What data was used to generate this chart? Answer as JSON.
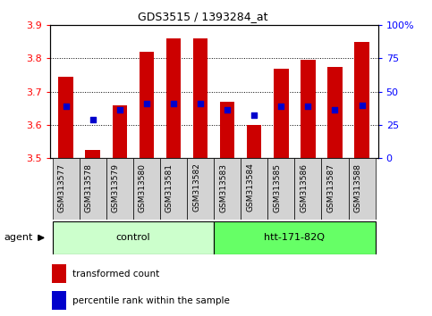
{
  "title": "GDS3515 / 1393284_at",
  "samples": [
    "GSM313577",
    "GSM313578",
    "GSM313579",
    "GSM313580",
    "GSM313581",
    "GSM313582",
    "GSM313583",
    "GSM313584",
    "GSM313585",
    "GSM313586",
    "GSM313587",
    "GSM313588"
  ],
  "transformed_count": [
    3.745,
    3.525,
    3.66,
    3.82,
    3.86,
    3.86,
    3.67,
    3.6,
    3.77,
    3.795,
    3.775,
    3.85
  ],
  "percentile_rank": [
    3.655,
    3.615,
    3.645,
    3.665,
    3.665,
    3.665,
    3.645,
    3.63,
    3.655,
    3.655,
    3.645,
    3.66
  ],
  "ylim": [
    3.5,
    3.9
  ],
  "yticks": [
    3.5,
    3.6,
    3.7,
    3.8,
    3.9
  ],
  "right_yticks": [
    0,
    25,
    50,
    75,
    100
  ],
  "right_ylabels": [
    "0",
    "25",
    "50",
    "75",
    "100%"
  ],
  "bar_color": "#cc0000",
  "dot_color": "#0000cc",
  "control_label": "control",
  "htt_label": "htt-171-82Q",
  "control_color": "#ccffcc",
  "htt_color": "#66ff66",
  "agent_label": "agent",
  "legend_red_label": "transformed count",
  "legend_blue_label": "percentile rank within the sample",
  "bar_width": 0.55,
  "baseline": 3.5,
  "n_control": 6,
  "n_total": 12
}
